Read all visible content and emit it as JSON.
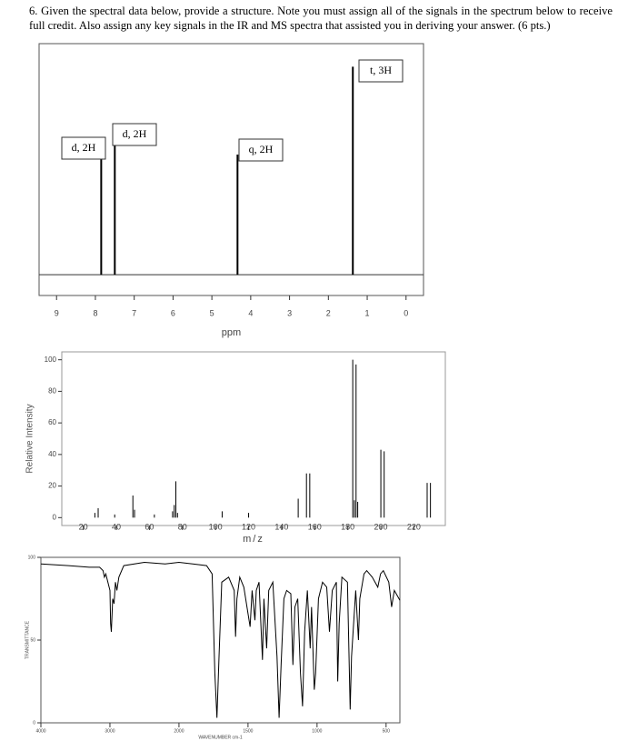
{
  "question": "6. Given the spectral data below, provide a structure.  Note you must assign all of the signals in the spectrum below to receive full credit. Also assign any key signals in the IR and MS spectra that assisted you in deriving your answer. (6 pts.)",
  "chart_data": [
    {
      "type": "stem",
      "x_label": "ppm",
      "x": [
        7.85,
        7.5,
        4.34,
        1.37
      ],
      "values": [
        58,
        56,
        52,
        90
      ],
      "peak_labels": [
        "d, 2H",
        "d, 2H",
        "q, 2H",
        "t, 3H"
      ],
      "xlim": [
        9.45,
        -0.45
      ],
      "ylim": [
        -9,
        100
      ],
      "xticks": [
        9,
        8,
        7,
        6,
        5,
        4,
        3,
        2,
        1,
        0
      ],
      "color": "#000000"
    },
    {
      "type": "stem",
      "x_label": "m/z",
      "y_label": "Relative Intensity",
      "x": [
        27,
        29,
        39,
        50,
        51,
        63,
        74,
        75,
        76,
        77,
        104,
        120,
        150,
        155,
        157,
        183,
        184,
        185,
        186,
        200,
        202,
        228,
        230
      ],
      "values": [
        3,
        6,
        2,
        14,
        5,
        2,
        4,
        8,
        23,
        3,
        4,
        3,
        12,
        28,
        28,
        100,
        11,
        97,
        10,
        43,
        42,
        22,
        22
      ],
      "xlim": [
        7,
        239
      ],
      "ylim": [
        -5,
        105
      ],
      "xticks": [
        20,
        40,
        60,
        80,
        100,
        120,
        140,
        160,
        180,
        200,
        220
      ],
      "yticks": [
        0,
        20,
        40,
        60,
        80,
        100
      ],
      "color": "#000000"
    },
    {
      "type": "line",
      "x_label": "WAVENUMBER cm-1",
      "y_label": "TRANSMITTANCE",
      "x": [
        4000,
        3600,
        3300,
        3150,
        3100,
        3080,
        3060,
        3000,
        2990,
        2980,
        2960,
        2940,
        2920,
        2900,
        2870,
        2800,
        2500,
        2200,
        2000,
        1900,
        1800,
        1760,
        1740,
        1725,
        1710,
        1690,
        1640,
        1600,
        1590,
        1580,
        1560,
        1530,
        1485,
        1470,
        1450,
        1440,
        1420,
        1395,
        1385,
        1365,
        1350,
        1320,
        1290,
        1275,
        1260,
        1240,
        1220,
        1190,
        1175,
        1160,
        1140,
        1120,
        1105,
        1090,
        1070,
        1050,
        1040,
        1020,
        1010,
        990,
        960,
        930,
        910,
        890,
        860,
        850,
        840,
        820,
        780,
        760,
        750,
        720,
        700,
        690,
        660,
        640,
        600,
        560,
        540,
        520,
        480,
        460,
        440,
        400
      ],
      "values": [
        96,
        95,
        94,
        94,
        92,
        88,
        90,
        80,
        60,
        55,
        75,
        72,
        85,
        80,
        88,
        95,
        97,
        96,
        97,
        96,
        95,
        90,
        30,
        3,
        40,
        85,
        88,
        80,
        52,
        75,
        88,
        82,
        58,
        80,
        62,
        80,
        85,
        38,
        75,
        45,
        80,
        85,
        40,
        3,
        35,
        75,
        80,
        78,
        35,
        70,
        75,
        30,
        10,
        55,
        80,
        45,
        70,
        20,
        30,
        75,
        85,
        82,
        55,
        80,
        85,
        25,
        60,
        88,
        85,
        8,
        40,
        80,
        50,
        75,
        90,
        92,
        88,
        82,
        90,
        92,
        85,
        70,
        80,
        74
      ],
      "xlim": [
        4000,
        400
      ],
      "x_scale_break": 2000,
      "ylim": [
        0,
        100
      ],
      "xticks": [
        4000,
        3000,
        2000,
        1500,
        1000,
        500
      ],
      "yticks": [
        0,
        50,
        100
      ],
      "color": "#000000"
    }
  ]
}
